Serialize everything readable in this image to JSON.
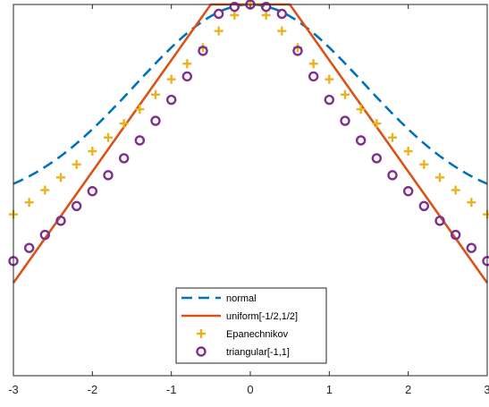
{
  "chart_data": {
    "type": "line",
    "title": "",
    "xlabel": "",
    "ylabel": "",
    "xlim": [
      -3,
      3
    ],
    "ylim": [
      0.2,
      1.0
    ],
    "xticks": [
      -3,
      -2,
      -1,
      0,
      1,
      2,
      3
    ],
    "xtick_labels": [
      "-3",
      "-2",
      "-1",
      "0",
      "1",
      "2",
      "3"
    ],
    "yticks": [],
    "grid": false,
    "legend_position": "bottom-center",
    "series": [
      {
        "name": "normal",
        "style": "dashed-line",
        "color": "#0072BD",
        "x": [
          -3,
          -2.5,
          -2,
          -1.5,
          -1,
          -0.5,
          0,
          0.5,
          1,
          1.5,
          2,
          2.5,
          3
        ],
        "y": [
          0.6135,
          0.7304,
          0.827,
          0.9003,
          0.9515,
          0.9838,
          1.0,
          0.9838,
          0.9515,
          0.9003,
          0.827,
          0.7304,
          0.6135
        ]
      },
      {
        "name": "uniform[-1/2,1/2]",
        "style": "solid-line",
        "color": "#D95319",
        "x": [
          -3,
          -0.5,
          0.5,
          3
        ],
        "y": [
          0.4,
          1.0,
          1.0,
          0.4
        ]
      },
      {
        "name": "Epanechnikov",
        "style": "plus-markers",
        "color": "#EDB120",
        "x": [
          -3,
          -2.8,
          -2.6,
          -2.4,
          -2.2,
          -2.0,
          -1.8,
          -1.6,
          -1.4,
          -1.2,
          -1.0,
          -0.8,
          -0.6,
          -0.4,
          -0.2,
          0,
          0.2,
          0.4,
          0.6,
          0.8,
          1.0,
          1.2,
          1.4,
          1.6,
          1.8,
          2.0,
          2.2,
          2.4,
          2.6,
          2.8,
          3.0
        ],
        "y": [
          0.5477,
          0.5735,
          0.6,
          0.6272,
          0.6553,
          0.6838,
          0.7133,
          0.7435,
          0.7742,
          0.8058,
          0.8387,
          0.8723,
          0.9069,
          0.9429,
          0.977,
          1.0,
          0.977,
          0.9429,
          0.9069,
          0.8723,
          0.8387,
          0.8058,
          0.7742,
          0.7435,
          0.7133,
          0.6838,
          0.6553,
          0.6272,
          0.6,
          0.5735,
          0.5477
        ]
      },
      {
        "name": "triangular[-1,1]",
        "style": "circle-markers",
        "color": "#7E2F8E",
        "x": [
          -3,
          -2.8,
          -2.6,
          -2.4,
          -2.2,
          -2.0,
          -1.8,
          -1.6,
          -1.4,
          -1.2,
          -1.0,
          -0.8,
          -0.6,
          -0.4,
          -0.2,
          0,
          0.2,
          0.4,
          0.6,
          0.8,
          1.0,
          1.2,
          1.4,
          1.6,
          1.8,
          2.0,
          2.2,
          2.4,
          2.6,
          2.8,
          3.0
        ],
        "y": [
          0.4472,
          0.4753,
          0.5035,
          0.5338,
          0.5657,
          0.5976,
          0.6321,
          0.6686,
          0.7071,
          0.7493,
          0.7946,
          0.845,
          0.9,
          0.9798,
          0.9949,
          1.0,
          0.9949,
          0.9798,
          0.9,
          0.845,
          0.7946,
          0.7493,
          0.7071,
          0.6686,
          0.6321,
          0.5976,
          0.5657,
          0.5338,
          0.5035,
          0.4753,
          0.4472
        ]
      }
    ]
  }
}
